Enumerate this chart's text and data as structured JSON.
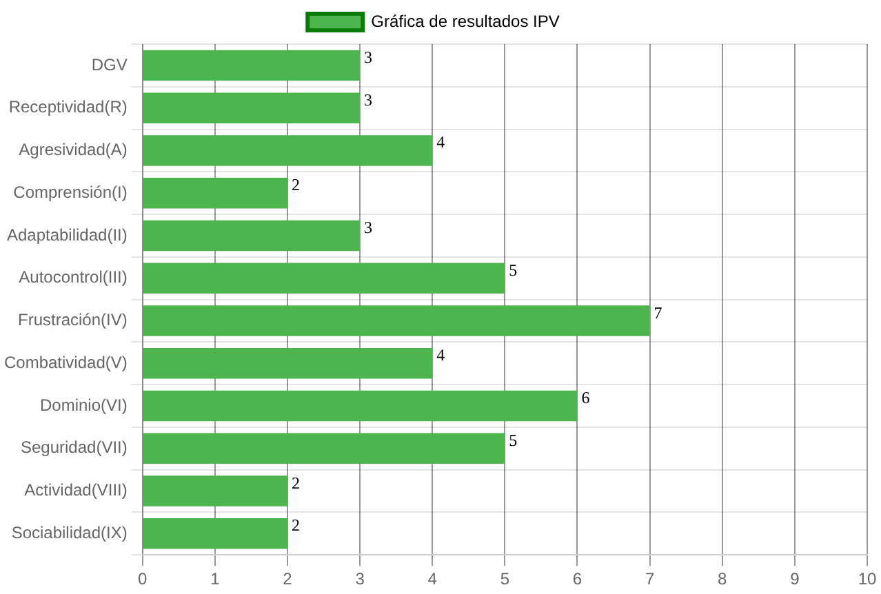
{
  "chart_data": {
    "type": "bar",
    "orientation": "horizontal",
    "categories": [
      "DGV",
      "Receptividad(R)",
      "Agresividad(A)",
      "Comprensión(I)",
      "Adaptabilidad(II)",
      "Autocontrol(III)",
      "Frustración(IV)",
      "Combatividad(V)",
      "Dominio(VI)",
      "Seguridad(VII)",
      "Actividad(VIII)",
      "Sociabilidad(IX)"
    ],
    "series": [
      {
        "name": "Gráfica de resultados IPV",
        "color": "#4db54d",
        "values": [
          3,
          3,
          4,
          2,
          3,
          5,
          7,
          4,
          6,
          5,
          2,
          2
        ]
      }
    ],
    "xlim": [
      0,
      10
    ],
    "xticks": [
      0,
      1,
      2,
      3,
      4,
      5,
      6,
      7,
      8,
      9,
      10
    ],
    "grid": true,
    "legend": "top",
    "data_labels": true
  }
}
